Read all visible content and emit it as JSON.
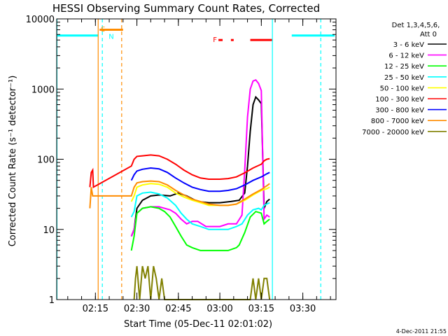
{
  "chart_data": {
    "type": "line",
    "title": "HESSI Observing Summary Count Rates, Corrected",
    "xlabel": "Start Time (05-Dec-11 02:01:02)",
    "ylabel": "Corrected Count Rate (s⁻¹ detector⁻¹)",
    "yscale": "log",
    "ylim": [
      1,
      10000
    ],
    "xlim_minutes_after_0200": [
      1,
      102
    ],
    "x_ticks": [
      {
        "label": "02:15",
        "minute": 15
      },
      {
        "label": "02:30",
        "minute": 30
      },
      {
        "label": "02:45",
        "minute": 45
      },
      {
        "label": "03:00",
        "minute": 60
      },
      {
        "label": "03:15",
        "minute": 75
      },
      {
        "label": "03:30",
        "minute": 90
      }
    ],
    "y_ticks": [
      {
        "label": "1",
        "value": 1
      },
      {
        "label": "10",
        "value": 10
      },
      {
        "label": "100",
        "value": 100
      },
      {
        "label": "1000",
        "value": 1000
      },
      {
        "label": "10000",
        "value": 10000
      }
    ],
    "legend": {
      "placement": "right",
      "header": [
        "Det 1,3,4,5,6,",
        "Att 0"
      ]
    },
    "series": [
      {
        "name": "3 - 6 keV",
        "color": "#000000",
        "points": [
          [
            28,
            8
          ],
          [
            29,
            10
          ],
          [
            30,
            20
          ],
          [
            32,
            26
          ],
          [
            35,
            30
          ],
          [
            38,
            31
          ],
          [
            42,
            30
          ],
          [
            45,
            33
          ],
          [
            48,
            30
          ],
          [
            52,
            25
          ],
          [
            56,
            24
          ],
          [
            60,
            24
          ],
          [
            64,
            25
          ],
          [
            67,
            26
          ],
          [
            69,
            33
          ],
          [
            70,
            80
          ],
          [
            71,
            250
          ],
          [
            72,
            600
          ],
          [
            73,
            770
          ],
          [
            74,
            700
          ],
          [
            75,
            620
          ],
          [
            76,
            20
          ],
          [
            77,
            25
          ],
          [
            78,
            27
          ]
        ]
      },
      {
        "name": "6 - 12 keV",
        "color": "#ff00ff",
        "points": [
          [
            28,
            8
          ],
          [
            29,
            10
          ],
          [
            30,
            17
          ],
          [
            32,
            20
          ],
          [
            35,
            21
          ],
          [
            38,
            21
          ],
          [
            42,
            19
          ],
          [
            44,
            17
          ],
          [
            46,
            14
          ],
          [
            48,
            12
          ],
          [
            50,
            13
          ],
          [
            52,
            13
          ],
          [
            55,
            11
          ],
          [
            58,
            11
          ],
          [
            60,
            11
          ],
          [
            63,
            12
          ],
          [
            66,
            12
          ],
          [
            68,
            16
          ],
          [
            69,
            70
          ],
          [
            70,
            400
          ],
          [
            71,
            1000
          ],
          [
            72,
            1300
          ],
          [
            73,
            1350
          ],
          [
            74,
            1200
          ],
          [
            75,
            950
          ],
          [
            76,
            14
          ],
          [
            77,
            16
          ],
          [
            78,
            15
          ]
        ]
      },
      {
        "name": "12 - 25 keV",
        "color": "#00ff00",
        "points": [
          [
            28,
            5
          ],
          [
            29,
            8
          ],
          [
            30,
            17
          ],
          [
            32,
            20
          ],
          [
            35,
            21
          ],
          [
            38,
            20
          ],
          [
            40,
            18
          ],
          [
            42,
            15
          ],
          [
            44,
            11
          ],
          [
            46,
            8
          ],
          [
            48,
            6
          ],
          [
            50,
            5.5
          ],
          [
            53,
            5
          ],
          [
            56,
            5
          ],
          [
            60,
            5
          ],
          [
            63,
            5
          ],
          [
            66,
            5.5
          ],
          [
            67,
            6
          ],
          [
            69,
            9
          ],
          [
            71,
            15
          ],
          [
            73,
            18
          ],
          [
            75,
            17
          ],
          [
            76,
            12
          ],
          [
            77,
            13
          ],
          [
            78,
            14
          ]
        ]
      },
      {
        "name": "25 - 50 keV",
        "color": "#00ffff",
        "points": [
          [
            28,
            15
          ],
          [
            29,
            18
          ],
          [
            30,
            30
          ],
          [
            32,
            33
          ],
          [
            35,
            34
          ],
          [
            38,
            32
          ],
          [
            41,
            28
          ],
          [
            44,
            22
          ],
          [
            46,
            17
          ],
          [
            48,
            14
          ],
          [
            50,
            12
          ],
          [
            53,
            11
          ],
          [
            56,
            10
          ],
          [
            60,
            10
          ],
          [
            63,
            10
          ],
          [
            66,
            11
          ],
          [
            68,
            12
          ],
          [
            70,
            16
          ],
          [
            72,
            19
          ],
          [
            74,
            20
          ],
          [
            75,
            19
          ],
          [
            76,
            22
          ],
          [
            77,
            23
          ],
          [
            78,
            24
          ]
        ]
      },
      {
        "name": "50 - 100 keV",
        "color": "#ffff00",
        "points": [
          [
            28,
            25
          ],
          [
            29,
            30
          ],
          [
            30,
            40
          ],
          [
            32,
            43
          ],
          [
            35,
            45
          ],
          [
            38,
            44
          ],
          [
            41,
            40
          ],
          [
            44,
            33
          ],
          [
            47,
            29
          ],
          [
            50,
            26
          ],
          [
            53,
            24
          ],
          [
            56,
            22
          ],
          [
            60,
            22
          ],
          [
            63,
            22
          ],
          [
            66,
            23
          ],
          [
            69,
            26
          ],
          [
            72,
            31
          ],
          [
            75,
            36
          ],
          [
            77,
            38
          ],
          [
            78,
            40
          ]
        ]
      },
      {
        "name": "100 - 300 keV",
        "color": "#ff0000",
        "points": [
          [
            13,
            40
          ],
          [
            13.5,
            65
          ],
          [
            14,
            70
          ],
          [
            14.3,
            40
          ],
          [
            28,
            80
          ],
          [
            29,
            100
          ],
          [
            30,
            110
          ],
          [
            32,
            112
          ],
          [
            35,
            115
          ],
          [
            38,
            112
          ],
          [
            41,
            100
          ],
          [
            44,
            85
          ],
          [
            47,
            70
          ],
          [
            50,
            60
          ],
          [
            53,
            54
          ],
          [
            56,
            52
          ],
          [
            60,
            52
          ],
          [
            63,
            53
          ],
          [
            66,
            56
          ],
          [
            69,
            64
          ],
          [
            72,
            75
          ],
          [
            75,
            85
          ],
          [
            76,
            95
          ],
          [
            77,
            100
          ],
          [
            78,
            102
          ]
        ]
      },
      {
        "name": "300 - 800 keV",
        "color": "#0000ff",
        "points": [
          [
            28,
            50
          ],
          [
            29,
            60
          ],
          [
            30,
            68
          ],
          [
            32,
            72
          ],
          [
            35,
            75
          ],
          [
            38,
            73
          ],
          [
            41,
            65
          ],
          [
            44,
            54
          ],
          [
            47,
            46
          ],
          [
            50,
            40
          ],
          [
            53,
            37
          ],
          [
            56,
            35
          ],
          [
            60,
            35
          ],
          [
            63,
            36
          ],
          [
            66,
            38
          ],
          [
            69,
            43
          ],
          [
            72,
            50
          ],
          [
            75,
            56
          ],
          [
            77,
            62
          ],
          [
            78,
            65
          ]
        ]
      },
      {
        "name": "800 - 7000 keV",
        "color": "#ff8c00",
        "points": [
          [
            13,
            20
          ],
          [
            13.5,
            40
          ],
          [
            14,
            30
          ],
          [
            28,
            30
          ],
          [
            29,
            40
          ],
          [
            30,
            46
          ],
          [
            32,
            48
          ],
          [
            35,
            49
          ],
          [
            38,
            48
          ],
          [
            41,
            43
          ],
          [
            44,
            36
          ],
          [
            47,
            31
          ],
          [
            50,
            27
          ],
          [
            53,
            25
          ],
          [
            56,
            23
          ],
          [
            60,
            22
          ],
          [
            63,
            22
          ],
          [
            66,
            23
          ],
          [
            69,
            27
          ],
          [
            72,
            32
          ],
          [
            75,
            37
          ],
          [
            77,
            42
          ],
          [
            78,
            45
          ]
        ]
      },
      {
        "name": "7000 - 20000 keV",
        "color": "#808000",
        "points": [
          [
            29,
            1
          ],
          [
            29.5,
            2
          ],
          [
            30,
            3
          ],
          [
            31,
            1
          ],
          [
            32,
            3
          ],
          [
            33,
            2
          ],
          [
            34,
            3
          ],
          [
            35,
            1
          ],
          [
            36,
            3
          ],
          [
            37,
            2
          ],
          [
            38,
            1
          ],
          [
            39,
            2
          ],
          [
            40,
            1
          ],
          [
            42,
            1
          ],
          [
            71,
            1
          ],
          [
            72,
            2
          ],
          [
            73,
            1
          ],
          [
            74,
            2
          ],
          [
            75,
            1
          ],
          [
            76,
            2
          ],
          [
            77,
            2
          ],
          [
            78,
            1
          ]
        ]
      }
    ],
    "annotations": [
      {
        "text": "S",
        "color": "#ff8c00"
      },
      {
        "text": "N",
        "color": "#00ffff"
      },
      {
        "text": "F",
        "color": "#ff0000"
      }
    ],
    "footer_timestamp": "4-Dec-2011 21:55"
  }
}
